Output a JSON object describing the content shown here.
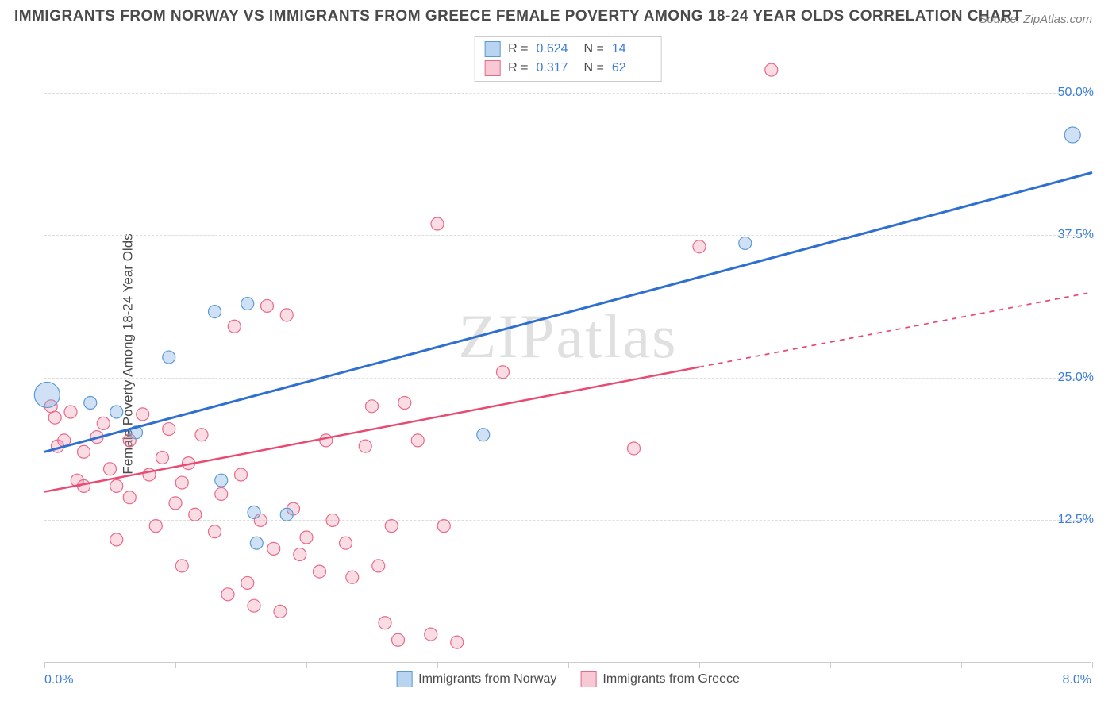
{
  "title": "IMMIGRANTS FROM NORWAY VS IMMIGRANTS FROM GREECE FEMALE POVERTY AMONG 18-24 YEAR OLDS CORRELATION CHART",
  "source": "Source: ZipAtlas.com",
  "y_axis_label": "Female Poverty Among 18-24 Year Olds",
  "watermark": "ZIPatlas",
  "chart": {
    "type": "scatter",
    "background_color": "#ffffff",
    "grid_color": "#dddddd",
    "axis_color": "#cccccc",
    "tick_label_color": "#3b7dd8",
    "text_color": "#4a4a4a",
    "xlim": [
      0,
      8
    ],
    "ylim": [
      0,
      55
    ],
    "x_tick_label_left": "0.0%",
    "x_tick_label_right": "8.0%",
    "x_ticks": [
      0,
      1,
      2,
      3,
      4,
      5,
      6,
      7,
      8
    ],
    "y_gridlines": [
      12.5,
      25.0,
      37.5,
      50.0
    ],
    "y_tick_labels": [
      "12.5%",
      "25.0%",
      "37.5%",
      "50.0%"
    ],
    "series": [
      {
        "name": "Immigrants from Norway",
        "swatch_fill": "#b8d4f0",
        "swatch_stroke": "#5b9bd5",
        "marker_fill": "rgba(120,170,230,0.35)",
        "marker_stroke": "#5b9bd5",
        "line_color": "#2e6fd0",
        "line_width": 3,
        "line_dash": "none",
        "R": "0.624",
        "N": "14",
        "trend": {
          "x1": 0,
          "y1": 18.5,
          "x2": 8,
          "y2": 43.0,
          "solid_until_x": 8
        },
        "points": [
          {
            "x": 0.02,
            "y": 23.5,
            "r": 16
          },
          {
            "x": 0.35,
            "y": 22.8,
            "r": 8
          },
          {
            "x": 0.55,
            "y": 22.0,
            "r": 8
          },
          {
            "x": 0.7,
            "y": 20.2,
            "r": 8
          },
          {
            "x": 0.95,
            "y": 26.8,
            "r": 8
          },
          {
            "x": 1.3,
            "y": 30.8,
            "r": 8
          },
          {
            "x": 1.35,
            "y": 16.0,
            "r": 8
          },
          {
            "x": 1.55,
            "y": 31.5,
            "r": 8
          },
          {
            "x": 1.6,
            "y": 13.2,
            "r": 8
          },
          {
            "x": 1.62,
            "y": 10.5,
            "r": 8
          },
          {
            "x": 1.85,
            "y": 13.0,
            "r": 8
          },
          {
            "x": 3.35,
            "y": 20.0,
            "r": 8
          },
          {
            "x": 5.35,
            "y": 36.8,
            "r": 8
          },
          {
            "x": 7.85,
            "y": 46.3,
            "r": 10
          }
        ]
      },
      {
        "name": "Immigrants from Greece",
        "swatch_fill": "#f8c8d4",
        "swatch_stroke": "#e86a8a",
        "marker_fill": "rgba(240,140,165,0.30)",
        "marker_stroke": "#e86a8a",
        "line_color": "#e84a72",
        "line_width": 2.5,
        "line_dash": "none",
        "R": "0.317",
        "N": "62",
        "trend": {
          "x1": 0,
          "y1": 15.0,
          "x2": 8,
          "y2": 32.5,
          "solid_until_x": 5.0
        },
        "points": [
          {
            "x": 0.05,
            "y": 22.5,
            "r": 8
          },
          {
            "x": 0.08,
            "y": 21.5,
            "r": 8
          },
          {
            "x": 0.1,
            "y": 19.0,
            "r": 8
          },
          {
            "x": 0.15,
            "y": 19.5,
            "r": 8
          },
          {
            "x": 0.2,
            "y": 22.0,
            "r": 8
          },
          {
            "x": 0.25,
            "y": 16.0,
            "r": 8
          },
          {
            "x": 0.3,
            "y": 18.5,
            "r": 8
          },
          {
            "x": 0.3,
            "y": 15.5,
            "r": 8
          },
          {
            "x": 0.4,
            "y": 19.8,
            "r": 8
          },
          {
            "x": 0.45,
            "y": 21.0,
            "r": 8
          },
          {
            "x": 0.5,
            "y": 17.0,
            "r": 8
          },
          {
            "x": 0.55,
            "y": 15.5,
            "r": 8
          },
          {
            "x": 0.55,
            "y": 10.8,
            "r": 8
          },
          {
            "x": 0.65,
            "y": 14.5,
            "r": 8
          },
          {
            "x": 0.65,
            "y": 19.5,
            "r": 8
          },
          {
            "x": 0.75,
            "y": 21.8,
            "r": 8
          },
          {
            "x": 0.8,
            "y": 16.5,
            "r": 8
          },
          {
            "x": 0.85,
            "y": 12.0,
            "r": 8
          },
          {
            "x": 0.9,
            "y": 18.0,
            "r": 8
          },
          {
            "x": 0.95,
            "y": 20.5,
            "r": 8
          },
          {
            "x": 1.0,
            "y": 14.0,
            "r": 8
          },
          {
            "x": 1.05,
            "y": 15.8,
            "r": 8
          },
          {
            "x": 1.05,
            "y": 8.5,
            "r": 8
          },
          {
            "x": 1.1,
            "y": 17.5,
            "r": 8
          },
          {
            "x": 1.15,
            "y": 13.0,
            "r": 8
          },
          {
            "x": 1.2,
            "y": 20.0,
            "r": 8
          },
          {
            "x": 1.3,
            "y": 11.5,
            "r": 8
          },
          {
            "x": 1.35,
            "y": 14.8,
            "r": 8
          },
          {
            "x": 1.4,
            "y": 6.0,
            "r": 8
          },
          {
            "x": 1.45,
            "y": 29.5,
            "r": 8
          },
          {
            "x": 1.5,
            "y": 16.5,
            "r": 8
          },
          {
            "x": 1.55,
            "y": 7.0,
            "r": 8
          },
          {
            "x": 1.6,
            "y": 5.0,
            "r": 8
          },
          {
            "x": 1.65,
            "y": 12.5,
            "r": 8
          },
          {
            "x": 1.7,
            "y": 31.3,
            "r": 8
          },
          {
            "x": 1.75,
            "y": 10.0,
            "r": 8
          },
          {
            "x": 1.8,
            "y": 4.5,
            "r": 8
          },
          {
            "x": 1.85,
            "y": 30.5,
            "r": 8
          },
          {
            "x": 1.9,
            "y": 13.5,
            "r": 8
          },
          {
            "x": 1.95,
            "y": 9.5,
            "r": 8
          },
          {
            "x": 2.0,
            "y": 11.0,
            "r": 8
          },
          {
            "x": 2.1,
            "y": 8.0,
            "r": 8
          },
          {
            "x": 2.15,
            "y": 19.5,
            "r": 8
          },
          {
            "x": 2.2,
            "y": 12.5,
            "r": 8
          },
          {
            "x": 2.3,
            "y": 10.5,
            "r": 8
          },
          {
            "x": 2.35,
            "y": 7.5,
            "r": 8
          },
          {
            "x": 2.45,
            "y": 19.0,
            "r": 8
          },
          {
            "x": 2.5,
            "y": 22.5,
            "r": 8
          },
          {
            "x": 2.55,
            "y": 8.5,
            "r": 8
          },
          {
            "x": 2.6,
            "y": 3.5,
            "r": 8
          },
          {
            "x": 2.65,
            "y": 12.0,
            "r": 8
          },
          {
            "x": 2.7,
            "y": 2.0,
            "r": 8
          },
          {
            "x": 2.75,
            "y": 22.8,
            "r": 8
          },
          {
            "x": 2.85,
            "y": 19.5,
            "r": 8
          },
          {
            "x": 2.95,
            "y": 2.5,
            "r": 8
          },
          {
            "x": 3.0,
            "y": 38.5,
            "r": 8
          },
          {
            "x": 3.05,
            "y": 12.0,
            "r": 8
          },
          {
            "x": 3.15,
            "y": 1.8,
            "r": 8
          },
          {
            "x": 3.5,
            "y": 25.5,
            "r": 8
          },
          {
            "x": 4.5,
            "y": 18.8,
            "r": 8
          },
          {
            "x": 5.55,
            "y": 52.0,
            "r": 8
          },
          {
            "x": 5.0,
            "y": 36.5,
            "r": 8
          }
        ]
      }
    ],
    "bottom_legend": [
      {
        "label": "Immigrants from Norway",
        "fill": "#b8d4f0",
        "stroke": "#5b9bd5"
      },
      {
        "label": "Immigrants from Greece",
        "fill": "#f8c8d4",
        "stroke": "#e86a8a"
      }
    ]
  }
}
